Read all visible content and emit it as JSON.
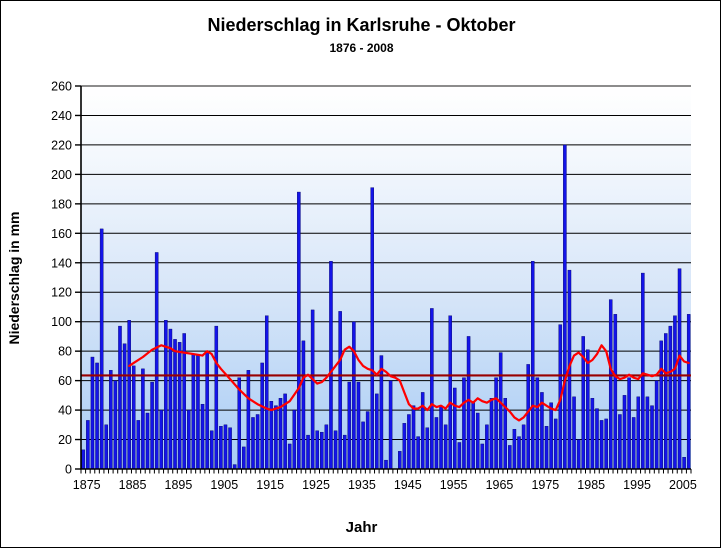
{
  "chart_data": {
    "type": "bar",
    "title": "Niederschlag in Karlsruhe - Oktober",
    "subtitle": "1876 - 2008",
    "xlabel": "Jahr",
    "ylabel": "Niederschlag in mm",
    "ylim": [
      0,
      260
    ],
    "ytick_step": 20,
    "ytick_labels": [
      0,
      20,
      40,
      60,
      80,
      100,
      120,
      140,
      160,
      180,
      200,
      220,
      240,
      260
    ],
    "xtick_labels": [
      1875,
      1885,
      1895,
      1905,
      1915,
      1925,
      1935,
      1945,
      1955,
      1965,
      1975,
      1985,
      1995,
      2005
    ],
    "grid": true,
    "legend": "none",
    "year_start": 1876,
    "year_end": 2008,
    "missing_years": [
      1944
    ],
    "bar_color": "#1414E8",
    "plot_bg_gradient_top": "#FFFFFF",
    "plot_bg_gradient_bottom": "#A8CCF5",
    "values": [
      13,
      33,
      76,
      72,
      163,
      30,
      67,
      60,
      97,
      85,
      101,
      70,
      33,
      68,
      38,
      59,
      147,
      40,
      101,
      95,
      88,
      86,
      92,
      40,
      78,
      77,
      44,
      80,
      26,
      97,
      29,
      30,
      28,
      3,
      62,
      15,
      67,
      35,
      37,
      72,
      104,
      46,
      43,
      48,
      51,
      17,
      40,
      188,
      87,
      23,
      108,
      26,
      25,
      30,
      141,
      26,
      107,
      23,
      59,
      100,
      59,
      32,
      39,
      191,
      51,
      77,
      6,
      60,
      0,
      12,
      31,
      37,
      43,
      22,
      52,
      28,
      109,
      35,
      43,
      30,
      104,
      55,
      18,
      62,
      90,
      45,
      38,
      17,
      30,
      48,
      62,
      79,
      48,
      16,
      27,
      22,
      30,
      71,
      141,
      62,
      52,
      29,
      45,
      34,
      98,
      220,
      135,
      49,
      20,
      90,
      81,
      48,
      41,
      33,
      34,
      115,
      105,
      37,
      50,
      62,
      35,
      49,
      133,
      49,
      43,
      60,
      87,
      92,
      97,
      104,
      136,
      8,
      105
    ],
    "trend_line": {
      "color": "#FF0000",
      "points": [
        [
          1886,
          70
        ],
        [
          1887,
          72
        ],
        [
          1889,
          76
        ],
        [
          1891,
          81
        ],
        [
          1893,
          84
        ],
        [
          1895,
          82
        ],
        [
          1896,
          80
        ],
        [
          1898,
          79
        ],
        [
          1900,
          78
        ],
        [
          1902,
          77
        ],
        [
          1903,
          80
        ],
        [
          1904,
          78
        ],
        [
          1905,
          72
        ],
        [
          1906,
          68
        ],
        [
          1908,
          61
        ],
        [
          1910,
          54
        ],
        [
          1912,
          48
        ],
        [
          1914,
          44
        ],
        [
          1916,
          41
        ],
        [
          1917,
          40
        ],
        [
          1919,
          42
        ],
        [
          1921,
          46
        ],
        [
          1923,
          55
        ],
        [
          1924,
          62
        ],
        [
          1925,
          64
        ],
        [
          1926,
          61
        ],
        [
          1927,
          58
        ],
        [
          1928,
          59
        ],
        [
          1929,
          62
        ],
        [
          1930,
          66
        ],
        [
          1931,
          70
        ],
        [
          1932,
          74
        ],
        [
          1933,
          81
        ],
        [
          1934,
          83
        ],
        [
          1935,
          80
        ],
        [
          1936,
          74
        ],
        [
          1937,
          70
        ],
        [
          1938,
          68
        ],
        [
          1939,
          67
        ],
        [
          1940,
          64
        ],
        [
          1941,
          68
        ],
        [
          1942,
          66
        ],
        [
          1943,
          63
        ],
        [
          1944,
          62
        ],
        [
          1945,
          60
        ],
        [
          1946,
          52
        ],
        [
          1947,
          44
        ],
        [
          1948,
          41
        ],
        [
          1949,
          41
        ],
        [
          1950,
          43
        ],
        [
          1951,
          40
        ],
        [
          1952,
          44
        ],
        [
          1953,
          42
        ],
        [
          1954,
          43
        ],
        [
          1955,
          41
        ],
        [
          1956,
          45
        ],
        [
          1957,
          43
        ],
        [
          1958,
          42
        ],
        [
          1959,
          45
        ],
        [
          1960,
          47
        ],
        [
          1961,
          45
        ],
        [
          1962,
          48
        ],
        [
          1963,
          46
        ],
        [
          1964,
          45
        ],
        [
          1965,
          47
        ],
        [
          1966,
          48
        ],
        [
          1967,
          45
        ],
        [
          1968,
          42
        ],
        [
          1969,
          39
        ],
        [
          1970,
          35
        ],
        [
          1971,
          33
        ],
        [
          1972,
          35
        ],
        [
          1973,
          39
        ],
        [
          1974,
          43
        ],
        [
          1975,
          42
        ],
        [
          1976,
          45
        ],
        [
          1977,
          43
        ],
        [
          1978,
          41
        ],
        [
          1979,
          40
        ],
        [
          1980,
          47
        ],
        [
          1981,
          60
        ],
        [
          1982,
          70
        ],
        [
          1983,
          77
        ],
        [
          1984,
          79
        ],
        [
          1985,
          76
        ],
        [
          1986,
          72
        ],
        [
          1987,
          74
        ],
        [
          1988,
          78
        ],
        [
          1989,
          84
        ],
        [
          1990,
          80
        ],
        [
          1991,
          68
        ],
        [
          1992,
          63
        ],
        [
          1993,
          61
        ],
        [
          1994,
          62
        ],
        [
          1995,
          64
        ],
        [
          1996,
          62
        ],
        [
          1997,
          61
        ],
        [
          1998,
          65
        ],
        [
          1999,
          64
        ],
        [
          2000,
          63
        ],
        [
          2001,
          64
        ],
        [
          2002,
          68
        ],
        [
          2003,
          65
        ],
        [
          2004,
          66
        ],
        [
          2005,
          68
        ],
        [
          2006,
          77
        ],
        [
          2007,
          73
        ],
        [
          2008,
          72
        ]
      ]
    },
    "mean_line": {
      "color": "#990000",
      "value": 63.5
    }
  }
}
